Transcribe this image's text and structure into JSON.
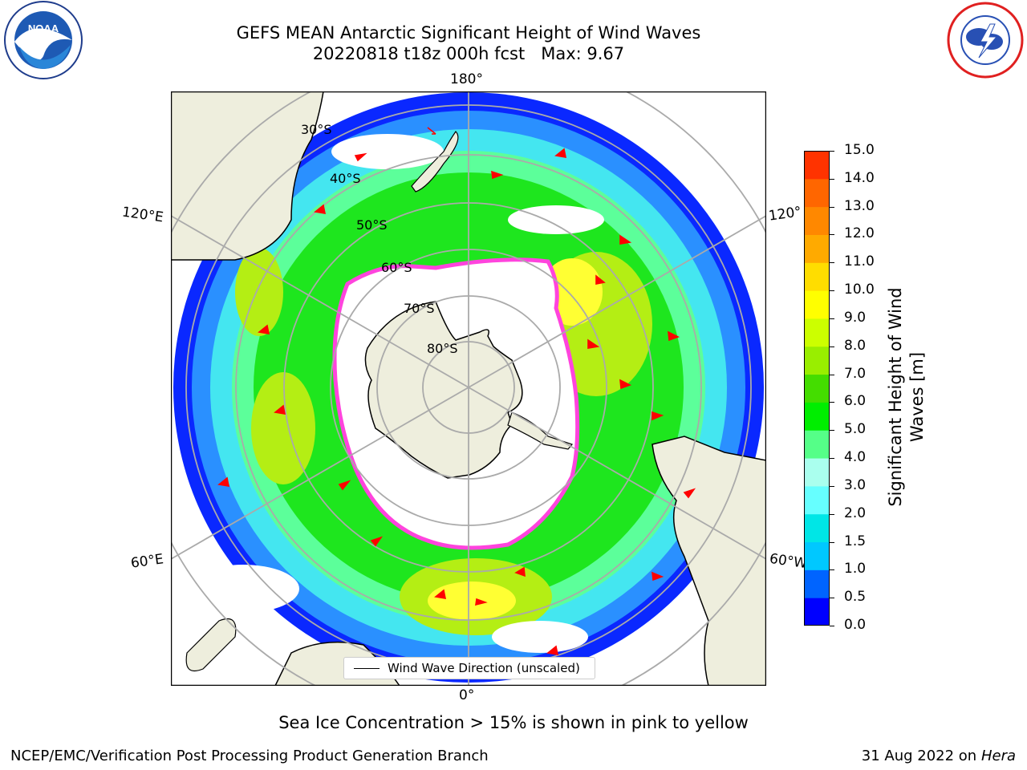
{
  "title": {
    "line1": "GEFS MEAN Antarctic Significant Height of Wind Waves",
    "line2": "20220818 t18z 000h fcst   Max: 9.67"
  },
  "map": {
    "lon_labels": {
      "top": "180°",
      "bottom": "0°",
      "left_upper": "120°E",
      "left_lower": "60°E",
      "right_upper": "120°",
      "right_lower": "60°W"
    },
    "lat_labels": [
      "30°S",
      "40°S",
      "50°S",
      "60°S",
      "70°S",
      "80°S"
    ],
    "legend": "Wind Wave Direction (unscaled)"
  },
  "colorbar": {
    "label": "Significant Height of Wind Waves [m]",
    "ticks": [
      "0.0",
      "0.5",
      "1.0",
      "1.5",
      "2.0",
      "3.0",
      "4.0",
      "5.0",
      "6.0",
      "7.0",
      "8.0",
      "9.0",
      "10.0",
      "11.0",
      "12.0",
      "13.0",
      "14.0",
      "15.0"
    ],
    "colors": [
      "#0000ff",
      "#0064ff",
      "#00c8ff",
      "#00e6e6",
      "#66ffff",
      "#aaffee",
      "#55ff88",
      "#00ee00",
      "#44dd00",
      "#99ee00",
      "#ccff00",
      "#ffff00",
      "#ffdd00",
      "#ffaa00",
      "#ff8800",
      "#ff6600",
      "#ff3300"
    ]
  },
  "sea_ice_note": "Sea Ice Concentration > 15% is shown in pink to yellow",
  "footer": {
    "left": "NCEP/EMC/Verification Post Processing Product Generation Branch",
    "date": "31 Aug 2022 on",
    "machine": "Hera"
  },
  "logos": {
    "noaa": "NOAA",
    "nws": "NATIONAL WEATHER SERVICE"
  }
}
